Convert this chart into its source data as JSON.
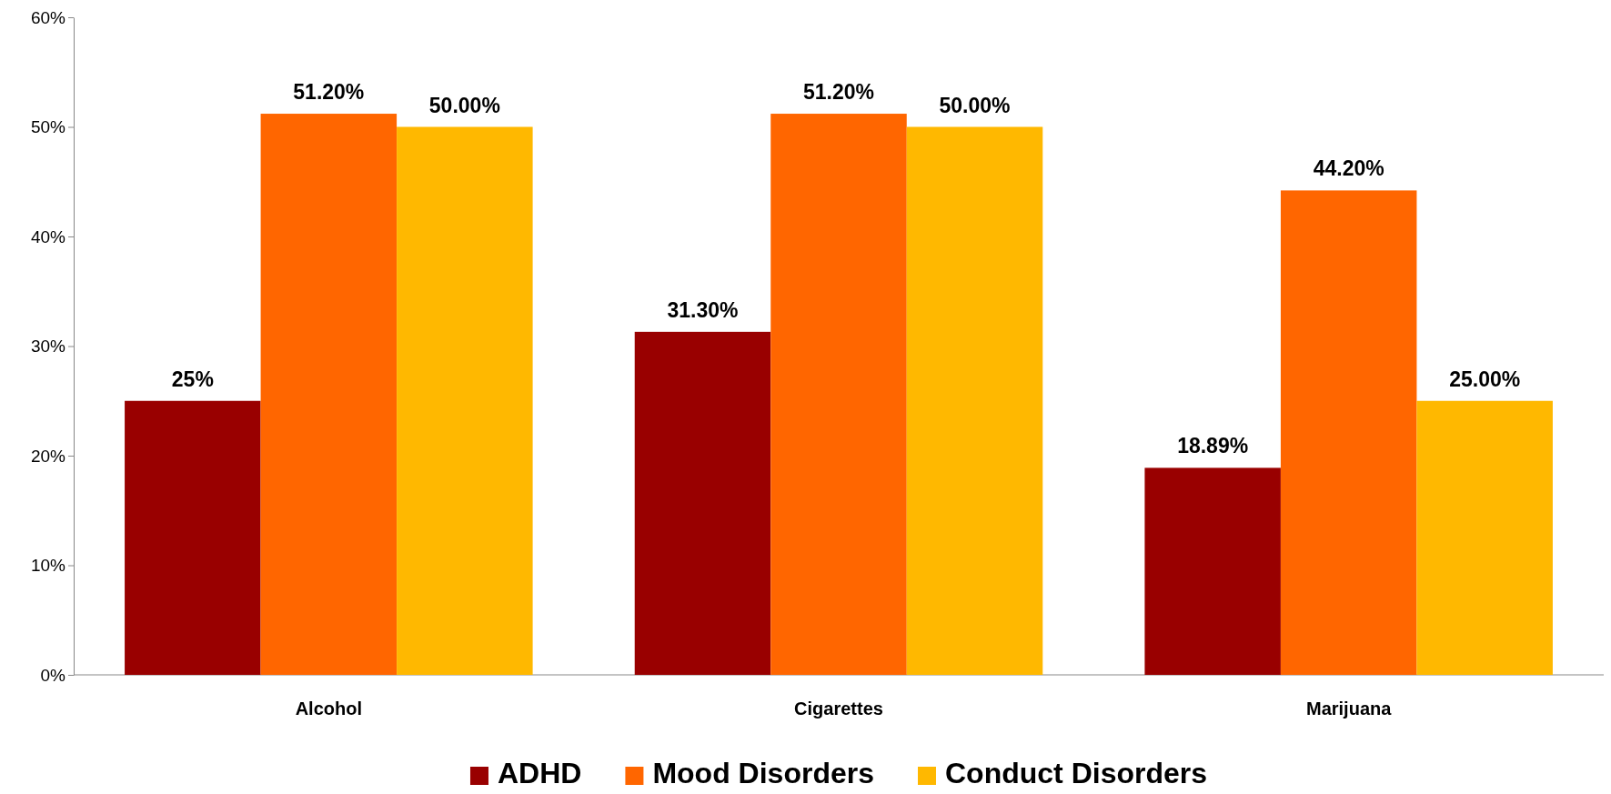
{
  "chart_data": {
    "type": "bar",
    "categories": [
      "Alcohol",
      "Cigarettes",
      "Marijuana"
    ],
    "series": [
      {
        "name": "ADHD",
        "color": "#990000",
        "values": [
          25,
          31.3,
          18.89
        ],
        "value_labels": [
          "25%",
          "31.30%",
          "18.89%"
        ]
      },
      {
        "name": "Mood Disorders",
        "color": "#ff6600",
        "values": [
          51.2,
          51.2,
          44.2
        ],
        "value_labels": [
          "51.20%",
          "51.20%",
          "44.20%"
        ]
      },
      {
        "name": "Conduct Disorders",
        "color": "#ffb800",
        "values": [
          50,
          50,
          25
        ],
        "value_labels": [
          "50.00%",
          "50.00%",
          "25.00%"
        ]
      }
    ],
    "ylim": [
      0,
      60
    ],
    "yticks": [
      {
        "value": 0,
        "label": "0%"
      },
      {
        "value": 10,
        "label": "10%"
      },
      {
        "value": 20,
        "label": "20%"
      },
      {
        "value": 30,
        "label": "30%"
      },
      {
        "value": 40,
        "label": "40%"
      },
      {
        "value": 50,
        "label": "50%"
      },
      {
        "value": 60,
        "label": "60%"
      }
    ],
    "legend": "bottom",
    "grid": false
  }
}
